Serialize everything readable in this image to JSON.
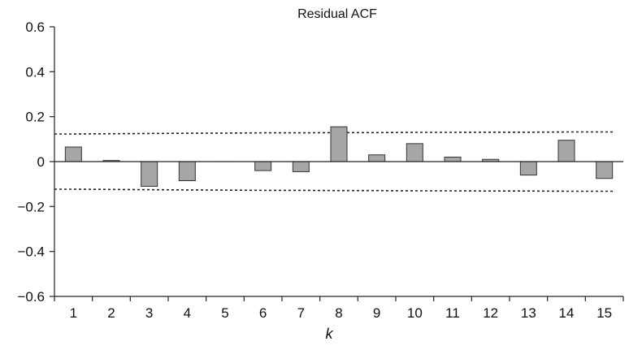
{
  "chart_data": {
    "type": "bar",
    "title": "Residual ACF",
    "xlabel": "k",
    "ylabel": "",
    "categories": [
      "1",
      "2",
      "3",
      "4",
      "5",
      "6",
      "7",
      "8",
      "9",
      "10",
      "11",
      "12",
      "13",
      "14",
      "15"
    ],
    "values": [
      0.065,
      0.005,
      -0.11,
      -0.085,
      0.0,
      -0.04,
      -0.045,
      0.155,
      0.03,
      0.08,
      0.02,
      0.01,
      -0.06,
      0.095,
      -0.075
    ],
    "ylim": [
      -0.6,
      0.6
    ],
    "yticks": [
      -0.6,
      -0.4,
      -0.2,
      0,
      0.2,
      0.4,
      0.6
    ],
    "ytick_labels": [
      "−0.6",
      "−0.4",
      "−0.2",
      "0",
      "0.2",
      "0.4",
      "0.6"
    ],
    "confidence_bands": {
      "upper": [
        0.123,
        0.124,
        0.125,
        0.126,
        0.127,
        0.128,
        0.128,
        0.129,
        0.129,
        0.13,
        0.13,
        0.131,
        0.131,
        0.132,
        0.132
      ],
      "lower": [
        -0.123,
        -0.124,
        -0.125,
        -0.126,
        -0.127,
        -0.128,
        -0.128,
        -0.129,
        -0.129,
        -0.13,
        -0.13,
        -0.131,
        -0.131,
        -0.132,
        -0.132
      ]
    },
    "grid": false,
    "legend": "none",
    "bar_color": "#a6a6a6",
    "bar_stroke": "#333333"
  }
}
